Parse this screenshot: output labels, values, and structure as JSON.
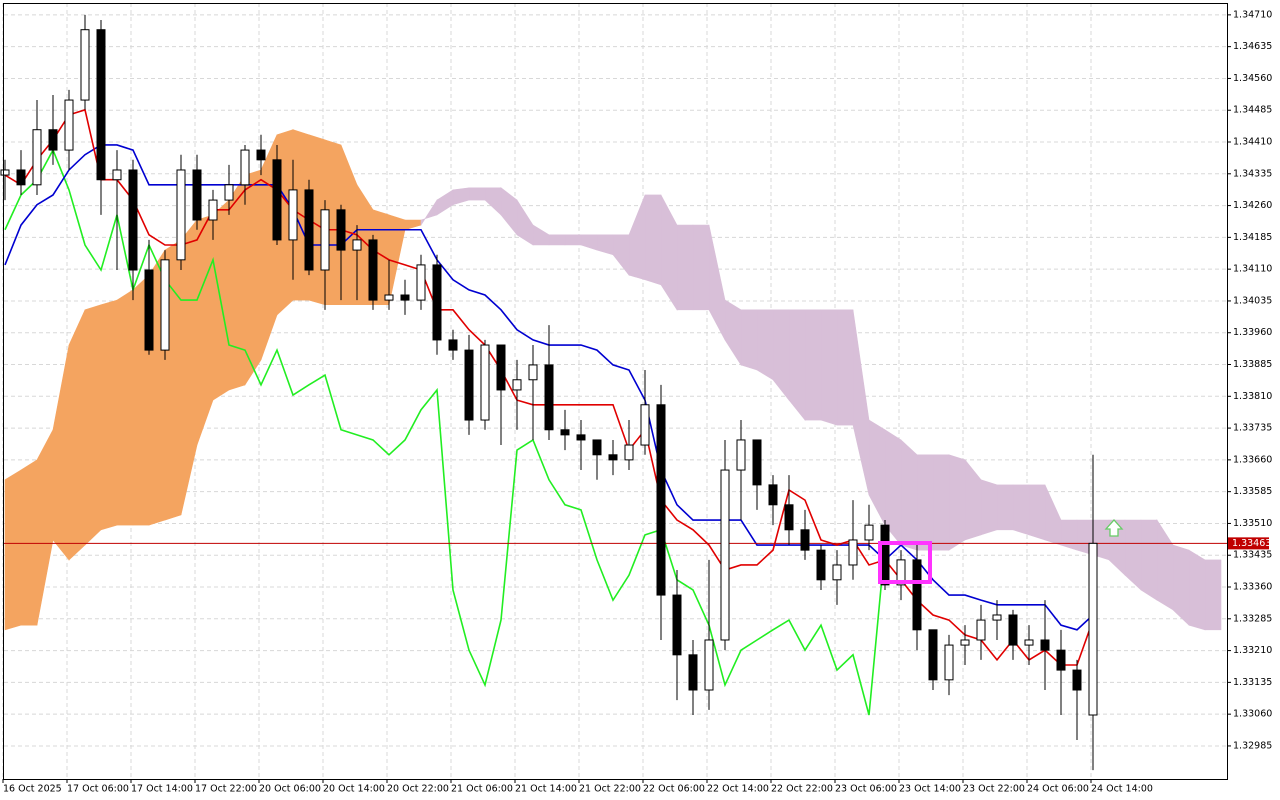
{
  "chart_data": {
    "type": "candlestick",
    "categories": [
      "16 Oct 2025",
      null,
      null,
      null,
      "17 Oct 06:00",
      null,
      null,
      null,
      "17 Oct 14:00",
      null,
      null,
      null,
      "17 Oct 22:00",
      null,
      null,
      null,
      "20 Oct 06:00",
      null,
      null,
      null,
      "20 Oct 14:00",
      null,
      null,
      null,
      "20 Oct 22:00",
      null,
      null,
      null,
      "21 Oct 06:00",
      null,
      null,
      null,
      "21 Oct 14:00",
      null,
      null,
      null,
      "21 Oct 22:00",
      null,
      null,
      null,
      "22 Oct 06:00",
      null,
      null,
      null,
      "22 Oct 14:00",
      null,
      null,
      null,
      "22 Oct 22:00",
      null,
      null,
      null,
      "23 Oct 06:00",
      null,
      null,
      null,
      "23 Oct 14:00",
      null,
      null,
      null,
      "23 Oct 22:00",
      null,
      null,
      null,
      "24 Oct 06:00",
      null,
      null,
      null,
      "24 Oct 14:00"
    ],
    "candles": [
      [
        1.34332,
        1.34368,
        1.34273,
        1.34344
      ],
      [
        1.34344,
        1.34391,
        1.34285,
        1.34309
      ],
      [
        1.34309,
        1.34509,
        1.34285,
        1.34439
      ],
      [
        1.34439,
        1.34521,
        1.34356,
        1.34391
      ],
      [
        1.34391,
        1.34533,
        1.34344,
        1.34509
      ],
      [
        1.34509,
        1.3471,
        1.34486,
        1.34675
      ],
      [
        1.34675,
        1.34698,
        1.34238,
        1.34321
      ],
      [
        1.34321,
        1.34391,
        1.34108,
        1.34344
      ],
      [
        1.34344,
        1.34368,
        1.34037,
        1.34108
      ],
      [
        1.34108,
        1.34179,
        1.33908,
        1.33919
      ],
      [
        1.33919,
        1.34155,
        1.33896,
        1.34132
      ],
      [
        1.34132,
        1.3438,
        1.34108,
        1.34344
      ],
      [
        1.34344,
        1.3438,
        1.34203,
        1.34226
      ],
      [
        1.34226,
        1.34297,
        1.34179,
        1.34273
      ],
      [
        1.34273,
        1.34356,
        1.34238,
        1.34309
      ],
      [
        1.34309,
        1.34403,
        1.34262,
        1.34391
      ],
      [
        1.34391,
        1.34427,
        1.34332,
        1.34368
      ],
      [
        1.34368,
        1.34403,
        1.34167,
        1.34179
      ],
      [
        1.34179,
        1.34368,
        1.34085,
        1.34297
      ],
      [
        1.34297,
        1.34321,
        1.34096,
        1.34108
      ],
      [
        1.34108,
        1.34273,
        1.34014,
        1.3425
      ],
      [
        1.3425,
        1.34262,
        1.34037,
        1.34155
      ],
      [
        1.34155,
        1.34214,
        1.34037,
        1.34179
      ],
      [
        1.34179,
        1.34191,
        1.34014,
        1.34037
      ],
      [
        1.34037,
        1.34132,
        1.34014,
        1.34049
      ],
      [
        1.34049,
        1.34085,
        1.34002,
        1.34037
      ],
      [
        1.34037,
        1.34144,
        1.34014,
        1.3412
      ],
      [
        1.3412,
        1.34144,
        1.33908,
        1.33943
      ],
      [
        1.33943,
        1.33967,
        1.33896,
        1.33919
      ],
      [
        1.33919,
        1.33955,
        1.33719,
        1.33754
      ],
      [
        1.33754,
        1.33943,
        1.33731,
        1.33931
      ],
      [
        1.33931,
        1.33931,
        1.33695,
        1.33825
      ],
      [
        1.33825,
        1.33896,
        1.33731,
        1.33849
      ],
      [
        1.33849,
        1.33931,
        1.33707,
        1.33884
      ],
      [
        1.33884,
        1.33978,
        1.33707,
        1.33731
      ],
      [
        1.33731,
        1.33778,
        1.33683,
        1.33719
      ],
      [
        1.33719,
        1.33754,
        1.33636,
        1.33707
      ],
      [
        1.33707,
        1.33707,
        1.33613,
        1.33672
      ],
      [
        1.33672,
        1.33707,
        1.33624,
        1.3366
      ],
      [
        1.3366,
        1.33754,
        1.33636,
        1.33695
      ],
      [
        1.33695,
        1.33872,
        1.33672,
        1.3379
      ],
      [
        1.3379,
        1.33837,
        1.33235,
        1.33341
      ],
      [
        1.33341,
        1.334,
        1.33093,
        1.332
      ],
      [
        1.332,
        1.33235,
        1.33058,
        1.33117
      ],
      [
        1.33117,
        1.33424,
        1.3307,
        1.33235
      ],
      [
        1.33235,
        1.33707,
        1.33211,
        1.33636
      ],
      [
        1.33636,
        1.33754,
        1.33518,
        1.33707
      ],
      [
        1.33707,
        1.33707,
        1.33542,
        1.33601
      ],
      [
        1.33601,
        1.33624,
        1.33506,
        1.33554
      ],
      [
        1.33554,
        1.33624,
        1.33459,
        1.33495
      ],
      [
        1.33495,
        1.33542,
        1.33424,
        1.33447
      ],
      [
        1.33447,
        1.33459,
        1.33353,
        1.33377
      ],
      [
        1.33377,
        1.33447,
        1.33318,
        1.33412
      ],
      [
        1.33412,
        1.33565,
        1.33377,
        1.33471
      ],
      [
        1.33471,
        1.33554,
        1.33447,
        1.33506
      ],
      [
        1.33506,
        1.33518,
        1.33353,
        1.33365
      ],
      [
        1.33365,
        1.33447,
        1.33329,
        1.33424
      ],
      [
        1.33424,
        1.33459,
        1.33211,
        1.33259
      ],
      [
        1.33259,
        1.33259,
        1.33117,
        1.33141
      ],
      [
        1.33141,
        1.33247,
        1.33105,
        1.33223
      ],
      [
        1.33223,
        1.3327,
        1.33176,
        1.33235
      ],
      [
        1.33235,
        1.33318,
        1.33188,
        1.33282
      ],
      [
        1.33282,
        1.33329,
        1.33235,
        1.33294
      ],
      [
        1.33294,
        1.33306,
        1.33188,
        1.33223
      ],
      [
        1.33223,
        1.3327,
        1.33176,
        1.33235
      ],
      [
        1.33235,
        1.33329,
        1.33117,
        1.33211
      ],
      [
        1.33211,
        1.33259,
        1.33058,
        1.33164
      ],
      [
        1.33164,
        1.33188,
        1.32999,
        1.33117
      ],
      [
        1.33058,
        1.33672,
        1.32928,
        1.33463
      ]
    ],
    "tenkan": {
      "color": "#e00000",
      "values": [
        1.34332,
        1.34309,
        1.34368,
        1.34415,
        1.34474,
        1.34486,
        1.34321,
        1.34321,
        1.34273,
        1.34191,
        1.34167,
        1.34167,
        1.34179,
        1.3425,
        1.3425,
        1.34297,
        1.34321,
        1.34297,
        1.3425,
        1.34226,
        1.34203,
        1.34203,
        1.34191,
        1.34155,
        1.34132,
        1.3412,
        1.34108,
        1.34014,
        1.34014,
        1.33967,
        1.33931,
        1.33872,
        1.33801,
        1.3379,
        1.3379,
        1.3379,
        1.3379,
        1.3379,
        1.3379,
        1.33683,
        1.33731,
        1.33565,
        1.33518,
        1.33495,
        1.33459,
        1.334,
        1.33412,
        1.33412,
        1.33447,
        1.33589,
        1.33565,
        1.33471,
        1.33459,
        1.33471,
        1.33412,
        1.33424,
        1.33377,
        1.33329,
        1.33294,
        1.33282,
        1.33247,
        1.33235,
        1.33188,
        1.33235,
        1.33188,
        1.33211,
        1.33176,
        1.33176,
        1.33282
      ]
    },
    "kijun": {
      "color": "#0000d0",
      "values": [
        1.3412,
        1.34214,
        1.34262,
        1.34285,
        1.34344,
        1.3438,
        1.34403,
        1.34403,
        1.34391,
        1.34309,
        1.34309,
        1.34309,
        1.34309,
        1.34309,
        1.34309,
        1.34309,
        1.34309,
        1.34309,
        1.3425,
        1.34167,
        1.34167,
        1.34167,
        1.34203,
        1.34203,
        1.34203,
        1.34203,
        1.34203,
        1.34132,
        1.34085,
        1.34061,
        1.34049,
        1.34014,
        1.33967,
        1.33943,
        1.33931,
        1.33931,
        1.33931,
        1.33919,
        1.33884,
        1.33872,
        1.33801,
        1.33636,
        1.33554,
        1.33518,
        1.33518,
        1.33518,
        1.33518,
        1.33459,
        1.33459,
        1.33459,
        1.33459,
        1.33459,
        1.33459,
        1.33459,
        1.33459,
        1.33424,
        1.33459,
        1.33424,
        1.33377,
        1.33341,
        1.33341,
        1.33329,
        1.33318,
        1.33318,
        1.33318,
        1.33318,
        1.3327,
        1.33259,
        1.33294
      ]
    },
    "chikou": {
      "color": "#22ee22",
      "values": [
        1.34203,
        1.34285,
        1.34321,
        1.34391,
        1.34297,
        1.34167,
        1.34108,
        1.34238,
        1.34061,
        1.34167,
        1.34085,
        1.34037,
        1.34037,
        1.34132,
        1.33931,
        1.33919,
        1.33837,
        1.33919,
        1.33813,
        1.33837,
        1.3386,
        1.33731,
        1.33719,
        1.33707,
        1.33672,
        1.33707,
        1.33778,
        1.33825,
        1.33353,
        1.33211,
        1.33129,
        1.33282,
        1.33683,
        1.33707,
        1.33613,
        1.33554,
        1.33542,
        1.33424,
        1.33329,
        1.33388,
        1.33483,
        1.33495,
        1.33377,
        1.33353,
        1.3327,
        1.33129,
        1.33211,
        1.33235,
        1.33259,
        1.33282,
        1.33211,
        1.3327,
        1.33164,
        1.332,
        1.33058,
        1.33459,
        null,
        null,
        null,
        null,
        null,
        null,
        null,
        null,
        null,
        null,
        null,
        null,
        null
      ]
    },
    "span_a": {
      "color": "#f4a460",
      "values": [
        1.33613,
        1.33636,
        1.3366,
        1.33731,
        1.33931,
        1.34014,
        1.34026,
        1.34037,
        1.34061,
        1.34096,
        1.34155,
        1.34179,
        1.34226,
        1.34238,
        1.34273,
        1.34332,
        1.34344,
        1.34427,
        1.34439,
        1.34427,
        1.34415,
        1.34403,
        1.34309,
        1.3425,
        1.34238,
        1.34226,
        1.34226,
        1.34238,
        1.34262,
        1.34273,
        1.34273,
        1.34238,
        1.34191,
        1.34167,
        1.34167,
        1.34167,
        1.34167,
        1.34155,
        1.34144,
        1.34096,
        1.34085,
        1.34073,
        1.34014,
        1.34014,
        1.34014,
        1.33943,
        1.33884,
        1.33872,
        1.33849,
        1.33801,
        1.33754,
        1.33754,
        1.33742,
        1.33742,
        1.33577,
        1.33506,
        1.33459,
        1.33447,
        1.33447,
        1.33447,
        1.33471,
        1.33483,
        1.33495,
        1.33495,
        1.33483,
        1.33471,
        1.33459,
        1.33447,
        1.33436,
        1.33424,
        1.33388,
        1.33353,
        1.33329,
        1.33306,
        1.3327,
        1.33259,
        1.33259
      ]
    },
    "span_b": {
      "color": "#d8bfd8",
      "values": [
        1.33259,
        1.3327,
        1.3327,
        1.33471,
        1.33424,
        1.33459,
        1.33495,
        1.33506,
        1.33506,
        1.33506,
        1.33518,
        1.3353,
        1.33695,
        1.33801,
        1.33825,
        1.33837,
        1.33896,
        1.34002,
        1.34037,
        1.34037,
        1.34026,
        1.34026,
        1.34026,
        1.34026,
        1.34026,
        1.34203,
        1.34214,
        1.34273,
        1.34297,
        1.34302,
        1.34302,
        1.34302,
        1.34273,
        1.34214,
        1.34191,
        1.34191,
        1.34191,
        1.34191,
        1.34191,
        1.34191,
        1.34285,
        1.34285,
        1.34214,
        1.34214,
        1.34214,
        1.34037,
        1.34014,
        1.34014,
        1.34014,
        1.34014,
        1.34014,
        1.34014,
        1.34014,
        1.34014,
        1.33754,
        1.33731,
        1.33707,
        1.33672,
        1.33672,
        1.33672,
        1.3366,
        1.33613,
        1.33601,
        1.33601,
        1.33601,
        1.33601,
        1.33518,
        1.33518,
        1.33518,
        1.33518,
        1.33518,
        1.33518,
        1.33518,
        1.33459,
        1.33447,
        1.33424,
        1.33424
      ]
    },
    "last_price": 1.33463,
    "last_price_color": "#c00000",
    "ylim": [
      1.32907,
      1.34738
    ],
    "yticks": [
      {
        "value": 1.3471,
        "label": "1.34710"
      },
      1.34635,
      {
        "value": 1.3456,
        "label": "1.34560"
      },
      1.34485,
      {
        "value": 1.3441,
        "label": "1.34410"
      },
      1.34335,
      {
        "value": 1.3426,
        "label": "1.34260"
      },
      1.34185,
      {
        "value": 1.3411,
        "label": "1.34110"
      },
      1.34035,
      {
        "value": 1.3396,
        "label": "1.33960"
      },
      1.33885,
      {
        "value": 1.3381,
        "label": "1.33810"
      },
      1.33735,
      {
        "value": 1.3366,
        "label": "1.33660"
      },
      1.33585,
      {
        "value": 1.3351,
        "label": "1.33510"
      },
      1.33435,
      {
        "value": 1.3336,
        "label": "1.33360"
      },
      1.33285,
      {
        "value": 1.3321,
        "label": "1.33210"
      },
      1.33135,
      {
        "value": 1.3306,
        "label": "1.33060"
      },
      1.32985
    ],
    "grid": true
  }
}
